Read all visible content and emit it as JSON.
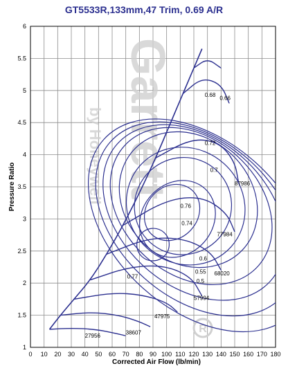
{
  "chart_data": {
    "type": "line",
    "title": "GT5533R,133mm,47 Trim, 0.69 A/R",
    "xlabel": "Corrected Air Flow (lb/min)",
    "ylabel": "Pressure Ratio",
    "xlim": [
      0,
      180
    ],
    "ylim": [
      1,
      6
    ],
    "x_ticks": [
      "0",
      "10",
      "20",
      "30",
      "40",
      "50",
      "60",
      "70",
      "80",
      "90",
      "100",
      "110",
      "120",
      "130",
      "140",
      "150",
      "160",
      "170",
      "180"
    ],
    "y_ticks": [
      "1",
      "1.5",
      "2",
      "2.5",
      "3",
      "3.5",
      "4",
      "4.5",
      "5",
      "5.5",
      "6"
    ],
    "grid": true,
    "colors": {
      "map": "#2b2f8f",
      "grid": "#8c8c8c",
      "axis": "#000000",
      "watermark": "#d0d0d0"
    },
    "surge_line": {
      "x": [
        14,
        22,
        32,
        44,
        56,
        68,
        80,
        92,
        102,
        112,
        120,
        126
      ],
      "y": [
        1.28,
        1.5,
        1.75,
        2.05,
        2.45,
        2.9,
        3.4,
        3.95,
        4.45,
        4.95,
        5.35,
        5.65
      ]
    },
    "speed_lines": [
      {
        "name": "27956",
        "x": [
          14,
          30,
          48,
          62,
          70
        ],
        "y": [
          1.28,
          1.3,
          1.28,
          1.22,
          1.18
        ]
      },
      {
        "name": "38607",
        "x": [
          22,
          45,
          65,
          80,
          88
        ],
        "y": [
          1.5,
          1.55,
          1.5,
          1.4,
          1.32
        ]
      },
      {
        "name": "47975",
        "x": [
          32,
          60,
          82,
          100,
          108
        ],
        "y": [
          1.75,
          1.85,
          1.82,
          1.7,
          1.55
        ]
      },
      {
        "name": "57994",
        "x": [
          44,
          72,
          98,
          118,
          126
        ],
        "y": [
          2.05,
          2.25,
          2.28,
          2.1,
          1.8
        ]
      },
      {
        "name": "68020",
        "x": [
          56,
          86,
          112,
          132,
          140
        ],
        "y": [
          2.45,
          2.7,
          2.7,
          2.5,
          2.2
        ]
      },
      {
        "name": "77984",
        "x": [
          68,
          100,
          126,
          144,
          150
        ],
        "y": [
          2.9,
          3.3,
          3.35,
          3.1,
          2.8
        ]
      },
      {
        "name": "87986",
        "x": [
          92,
          118,
          138,
          150,
          153
        ],
        "y": [
          3.95,
          4.25,
          4.2,
          3.9,
          3.55
        ]
      },
      {
        "name": "",
        "x": [
          112,
          126,
          140,
          146
        ],
        "y": [
          4.95,
          5.2,
          5.1,
          4.8
        ]
      },
      {
        "name": "",
        "x": [
          120,
          130,
          140
        ],
        "y": [
          5.35,
          5.5,
          5.35
        ]
      }
    ],
    "efficiency_islands": [
      {
        "name": "0.77",
        "cx": 90,
        "cy": 2.6,
        "rx": 12,
        "ry": 0.25,
        "label_x": 71,
        "label_y": 2.07
      },
      {
        "name": "0.76",
        "cx": 104,
        "cy": 3.1,
        "rx": 22,
        "ry": 0.4,
        "label_x": 110,
        "label_y": 3.17
      },
      {
        "name": "0.74",
        "cx": 108,
        "cy": 3.0,
        "rx": 30,
        "ry": 0.55,
        "label_x": 111,
        "label_y": 2.9
      },
      {
        "name": "0.72",
        "cx": 112,
        "cy": 3.2,
        "rx": 36,
        "ry": 0.75,
        "label_x": 128,
        "label_y": 4.15
      },
      {
        "name": "0.7",
        "cx": 114,
        "cy": 3.2,
        "rx": 42,
        "ry": 0.95,
        "label_x": 132,
        "label_y": 3.73
      },
      {
        "name": "0.68",
        "cx": 116,
        "cy": 3.3,
        "rx": 46,
        "ry": 1.15,
        "label_x": 128,
        "label_y": 4.9
      },
      {
        "name": "0.66",
        "cx": 118,
        "cy": 3.2,
        "rx": 50,
        "ry": 1.4,
        "label_x": 139,
        "label_y": 4.85
      },
      {
        "name": "0.6",
        "cx": 120,
        "cy": 3.1,
        "rx": 54,
        "ry": 1.6,
        "label_x": 124,
        "label_y": 2.35
      },
      {
        "name": "0.55",
        "cx": 122,
        "cy": 3.0,
        "rx": 58,
        "ry": 1.8,
        "label_x": 121,
        "label_y": 2.15
      },
      {
        "name": "0.5",
        "cx": 124,
        "cy": 2.9,
        "rx": 62,
        "ry": 2.0,
        "label_x": 122,
        "label_y": 2.0
      }
    ],
    "annotations": [
      {
        "text": "87986",
        "x": 150,
        "y": 3.52
      },
      {
        "text": "77984",
        "x": 137,
        "y": 2.73
      },
      {
        "text": "68020",
        "x": 135,
        "y": 2.12
      },
      {
        "text": "57994",
        "x": 120,
        "y": 1.74
      },
      {
        "text": "47975",
        "x": 91,
        "y": 1.45
      },
      {
        "text": "38607",
        "x": 70,
        "y": 1.2
      },
      {
        "text": "27956",
        "x": 40,
        "y": 1.15
      },
      {
        "text": "0.77",
        "x": 71,
        "y": 2.07
      },
      {
        "text": "0.76",
        "x": 110,
        "y": 3.17
      },
      {
        "text": "0.74",
        "x": 111,
        "y": 2.9
      },
      {
        "text": "0.72",
        "x": 128,
        "y": 4.15
      },
      {
        "text": "0.7",
        "x": 132,
        "y": 3.73
      },
      {
        "text": "0.68",
        "x": 128,
        "y": 4.9
      },
      {
        "text": "0.66",
        "x": 139,
        "y": 4.85
      },
      {
        "text": "0.6",
        "x": 124,
        "y": 2.35
      },
      {
        "text": "0.55",
        "x": 121,
        "y": 2.15
      },
      {
        "text": "0.5",
        "x": 122,
        "y": 2.0
      }
    ],
    "watermark": {
      "brand": "Garrett",
      "subtitle": "by Honeywell"
    }
  }
}
